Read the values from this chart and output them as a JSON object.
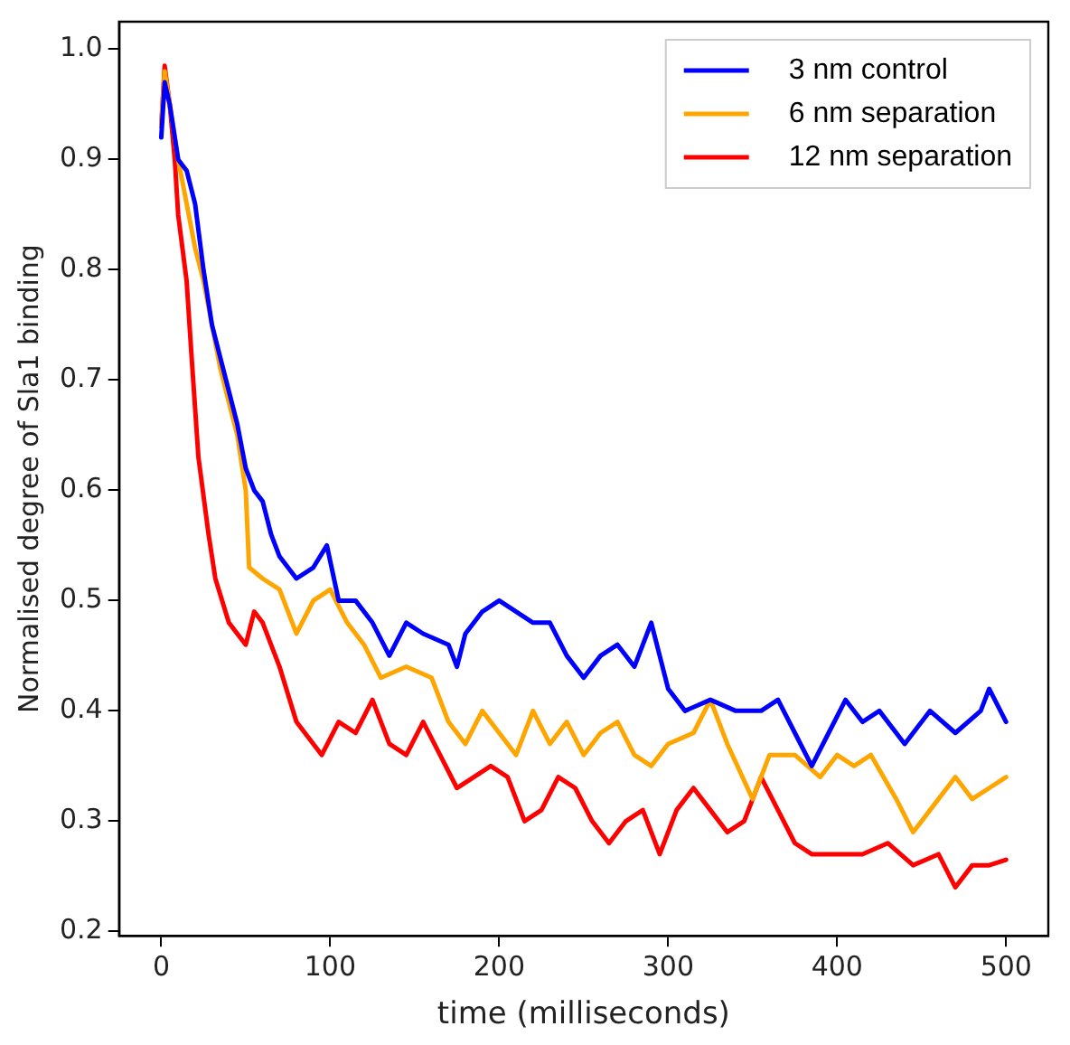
{
  "chart_data": {
    "type": "line",
    "xlabel": "time (milliseconds)",
    "ylabel": "Normalised degree of Sla1 binding",
    "xlim": [
      -25,
      525
    ],
    "xticks": [
      0,
      100,
      200,
      300,
      400,
      500
    ],
    "ylim": [
      0.196,
      1.025
    ],
    "yticks": [
      {
        "value": 0.2,
        "label": "0.2"
      },
      {
        "value": 0.3,
        "label": "0.3"
      },
      {
        "value": 0.4,
        "label": "0.4"
      },
      {
        "value": 0.5,
        "label": "0.5"
      },
      {
        "value": 0.6,
        "label": "0.6"
      },
      {
        "value": 0.7,
        "label": "0.7"
      },
      {
        "value": 0.8,
        "label": "0.8"
      },
      {
        "value": 0.9,
        "label": "0.9"
      },
      {
        "value": 1.0,
        "label": "1.0"
      }
    ],
    "grid": false,
    "legend": "top right",
    "marker": "none",
    "line_style": "solid",
    "series": [
      {
        "name": "3 nm control",
        "color": "#0000ff",
        "x": [
          0,
          2,
          5,
          10,
          15,
          20,
          25,
          30,
          35,
          40,
          45,
          50,
          55,
          60,
          65,
          70,
          80,
          90,
          98,
          105,
          115,
          125,
          135,
          145,
          155,
          170,
          175,
          180,
          190,
          200,
          210,
          220,
          230,
          240,
          250,
          260,
          270,
          280,
          290,
          300,
          310,
          325,
          340,
          355,
          365,
          375,
          385,
          395,
          405,
          415,
          425,
          440,
          455,
          470,
          485,
          490,
          500
        ],
        "values": [
          0.92,
          0.97,
          0.95,
          0.9,
          0.89,
          0.86,
          0.8,
          0.75,
          0.72,
          0.69,
          0.66,
          0.62,
          0.6,
          0.59,
          0.56,
          0.54,
          0.52,
          0.53,
          0.55,
          0.5,
          0.5,
          0.48,
          0.45,
          0.48,
          0.47,
          0.46,
          0.44,
          0.47,
          0.49,
          0.5,
          0.49,
          0.48,
          0.48,
          0.45,
          0.43,
          0.45,
          0.46,
          0.44,
          0.48,
          0.42,
          0.4,
          0.41,
          0.4,
          0.4,
          0.41,
          0.38,
          0.35,
          0.38,
          0.41,
          0.39,
          0.4,
          0.37,
          0.4,
          0.38,
          0.4,
          0.42,
          0.39
        ]
      },
      {
        "name": "6 nm separation",
        "color": "#ffa500",
        "x": [
          0,
          2,
          5,
          10,
          15,
          20,
          25,
          30,
          35,
          40,
          45,
          50,
          52,
          60,
          70,
          80,
          90,
          100,
          110,
          120,
          130,
          145,
          160,
          170,
          180,
          190,
          200,
          210,
          220,
          230,
          240,
          250,
          260,
          270,
          280,
          290,
          300,
          315,
          325,
          335,
          350,
          360,
          375,
          390,
          400,
          410,
          420,
          435,
          445,
          455,
          470,
          480,
          490,
          500
        ],
        "values": [
          0.93,
          0.98,
          0.95,
          0.9,
          0.86,
          0.82,
          0.79,
          0.75,
          0.71,
          0.68,
          0.65,
          0.6,
          0.53,
          0.52,
          0.51,
          0.47,
          0.5,
          0.51,
          0.48,
          0.46,
          0.43,
          0.44,
          0.43,
          0.39,
          0.37,
          0.4,
          0.38,
          0.36,
          0.4,
          0.37,
          0.39,
          0.36,
          0.38,
          0.39,
          0.36,
          0.35,
          0.37,
          0.38,
          0.41,
          0.37,
          0.32,
          0.36,
          0.36,
          0.34,
          0.36,
          0.35,
          0.36,
          0.32,
          0.29,
          0.31,
          0.34,
          0.32,
          0.33,
          0.34
        ]
      },
      {
        "name": "12 nm separation",
        "color": "#ff0000",
        "x": [
          0,
          2,
          5,
          8,
          10,
          15,
          18,
          22,
          28,
          32,
          40,
          50,
          55,
          60,
          70,
          80,
          90,
          95,
          105,
          115,
          125,
          135,
          145,
          155,
          165,
          175,
          185,
          195,
          205,
          215,
          225,
          235,
          245,
          255,
          265,
          275,
          285,
          295,
          305,
          315,
          325,
          335,
          345,
          355,
          365,
          375,
          385,
          400,
          415,
          430,
          445,
          460,
          470,
          480,
          490,
          500
        ],
        "values": [
          0.93,
          0.985,
          0.95,
          0.9,
          0.85,
          0.79,
          0.72,
          0.63,
          0.56,
          0.52,
          0.48,
          0.46,
          0.49,
          0.48,
          0.44,
          0.39,
          0.37,
          0.36,
          0.39,
          0.38,
          0.41,
          0.37,
          0.36,
          0.39,
          0.36,
          0.33,
          0.34,
          0.35,
          0.34,
          0.3,
          0.31,
          0.34,
          0.33,
          0.3,
          0.28,
          0.3,
          0.31,
          0.27,
          0.31,
          0.33,
          0.31,
          0.29,
          0.3,
          0.34,
          0.31,
          0.28,
          0.27,
          0.27,
          0.27,
          0.28,
          0.26,
          0.27,
          0.24,
          0.26,
          0.26,
          0.265
        ]
      }
    ]
  }
}
